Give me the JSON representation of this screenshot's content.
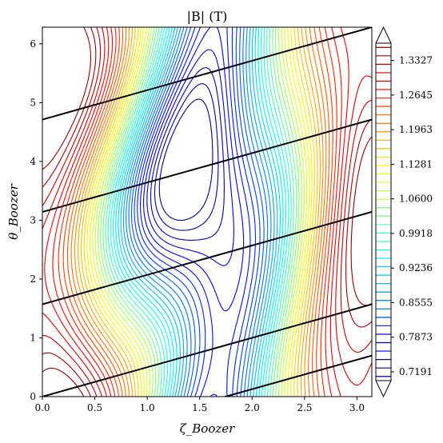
{
  "chart_data": {
    "type": "contour",
    "title": "|B| (T)",
    "xlabel": "ζ_Boozer",
    "ylabel": "θ_Boozer",
    "xlim": [
      0,
      3.14159
    ],
    "ylim": [
      0,
      6.28318
    ],
    "x_ticks": [
      "0.0",
      "0.5",
      "1.0",
      "1.5",
      "2.0",
      "2.5",
      "3.0"
    ],
    "y_ticks": [
      "0",
      "1",
      "2",
      "3",
      "4",
      "5",
      "6"
    ],
    "colorbar": {
      "colormap": "jet",
      "vmin": 0.7018,
      "vmax": 1.3667,
      "extend": "both",
      "tick_labels": [
        "0.7191",
        "0.7873",
        "0.8555",
        "0.9236",
        "0.9918",
        "1.0600",
        "1.1281",
        "1.1963",
        "1.2645",
        "1.3327"
      ]
    },
    "field_lines": {
      "color": "#000000",
      "slope": 0.5,
      "intercepts": [
        0,
        1.5708,
        3.1416,
        4.7124,
        6.2832,
        -0.8727
      ]
    }
  }
}
